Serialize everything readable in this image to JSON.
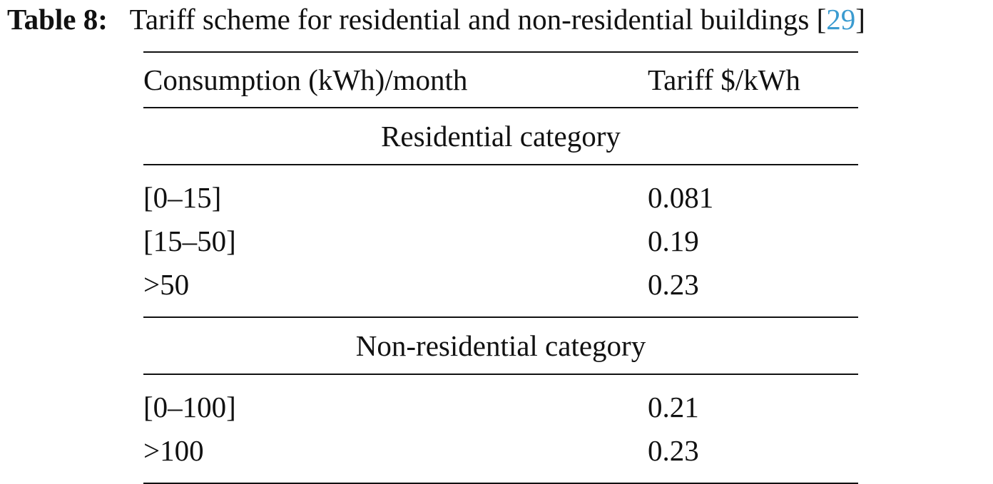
{
  "caption": {
    "label": "Table 8:",
    "text": "Tariff scheme for residential and non-residential buildings [",
    "ref": "29",
    "close": "]"
  },
  "table": {
    "headers": [
      "Consumption (kWh)/month",
      "Tariff $/kWh"
    ],
    "sections": [
      {
        "title": "Residential category",
        "rows": [
          [
            "[0–15]",
            "0.081"
          ],
          [
            "[15–50]",
            "0.19"
          ],
          [
            ">50",
            "0.23"
          ]
        ]
      },
      {
        "title": "Non-residential category",
        "rows": [
          [
            "[0–100]",
            "0.21"
          ],
          [
            ">100",
            "0.23"
          ]
        ]
      }
    ]
  }
}
